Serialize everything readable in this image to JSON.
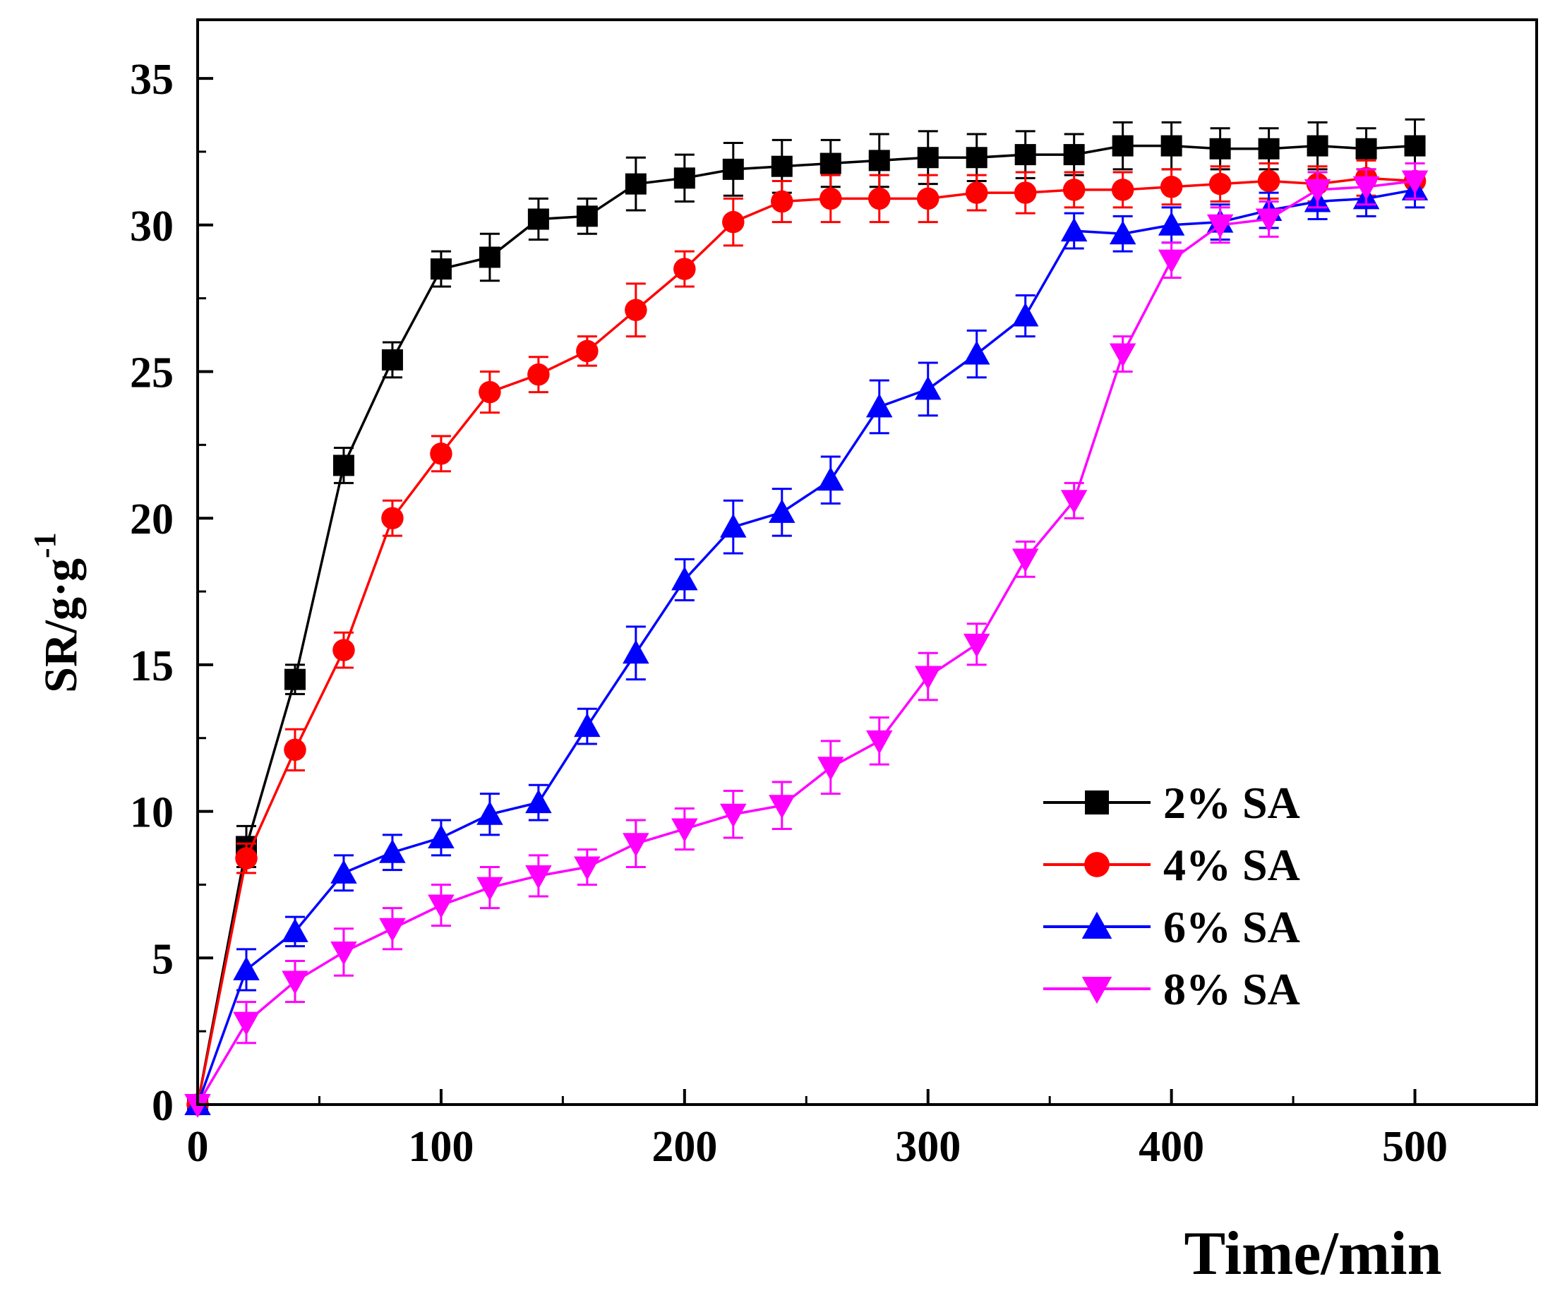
{
  "chart_data": {
    "type": "line",
    "title": "",
    "xlabel": "Time/min",
    "ylabel_main": "SR/g·g",
    "ylabel_sup": "-1",
    "xlim": [
      0,
      550
    ],
    "ylim": [
      0,
      37
    ],
    "xticks": [
      0,
      100,
      200,
      300,
      400,
      500
    ],
    "yticks": [
      0,
      5,
      10,
      15,
      20,
      25,
      30,
      35
    ],
    "xtick_labels": [
      "0",
      "100",
      "200",
      "300",
      "400",
      "500"
    ],
    "ytick_labels": [
      "0",
      "5",
      "10",
      "15",
      "20",
      "25",
      "30",
      "35"
    ],
    "grid": false,
    "legend_position": "bottom-right",
    "x": [
      0,
      20,
      40,
      60,
      80,
      100,
      120,
      140,
      160,
      180,
      200,
      220,
      240,
      260,
      280,
      300,
      320,
      340,
      360,
      380,
      400,
      420,
      440,
      460,
      480,
      500
    ],
    "series": [
      {
        "name": "2% SA",
        "color": "#000000",
        "marker": "square",
        "values": [
          0,
          8.8,
          14.5,
          21.8,
          25.4,
          28.5,
          28.9,
          30.2,
          30.3,
          31.4,
          31.6,
          31.9,
          32.0,
          32.1,
          32.2,
          32.3,
          32.3,
          32.4,
          32.4,
          32.7,
          32.7,
          32.6,
          32.6,
          32.7,
          32.6,
          32.7
        ],
        "errors": [
          0,
          0.7,
          0.5,
          0.6,
          0.6,
          0.6,
          0.8,
          0.7,
          0.6,
          0.9,
          0.8,
          0.9,
          0.9,
          0.8,
          0.9,
          0.9,
          0.8,
          0.8,
          0.7,
          0.8,
          0.8,
          0.7,
          0.7,
          0.8,
          0.7,
          0.9
        ]
      },
      {
        "name": "4% SA",
        "color": "#ff0000",
        "marker": "circle",
        "values": [
          0,
          8.4,
          12.1,
          15.5,
          20.0,
          22.2,
          24.3,
          24.9,
          25.7,
          27.1,
          28.5,
          30.1,
          30.8,
          30.9,
          30.9,
          30.9,
          31.1,
          31.1,
          31.2,
          31.2,
          31.3,
          31.4,
          31.5,
          31.4,
          31.6,
          31.5
        ],
        "errors": [
          0,
          0.5,
          0.7,
          0.6,
          0.6,
          0.6,
          0.7,
          0.6,
          0.5,
          0.9,
          0.6,
          0.8,
          0.7,
          0.8,
          0.8,
          0.8,
          0.6,
          0.7,
          0.6,
          0.6,
          0.6,
          0.6,
          0.6,
          0.6,
          0.6,
          0.6
        ]
      },
      {
        "name": "6% SA",
        "color": "#0000ff",
        "marker": "triangle-up",
        "values": [
          0,
          4.6,
          5.9,
          7.9,
          8.6,
          9.1,
          9.9,
          10.3,
          12.9,
          15.4,
          17.9,
          19.7,
          20.2,
          21.3,
          23.8,
          24.4,
          25.6,
          26.9,
          29.8,
          29.7,
          30.0,
          30.1,
          30.5,
          30.8,
          30.9,
          31.2
        ],
        "errors": [
          0,
          0.7,
          0.5,
          0.6,
          0.6,
          0.6,
          0.7,
          0.6,
          0.6,
          0.9,
          0.7,
          0.9,
          0.8,
          0.8,
          0.9,
          0.9,
          0.8,
          0.7,
          0.6,
          0.6,
          0.6,
          0.6,
          0.6,
          0.6,
          0.6,
          0.6
        ]
      },
      {
        "name": "8% SA",
        "color": "#ff00ff",
        "marker": "triangle-down",
        "values": [
          0,
          2.8,
          4.2,
          5.2,
          6.0,
          6.8,
          7.4,
          7.8,
          8.1,
          8.9,
          9.4,
          9.9,
          10.2,
          11.5,
          12.4,
          14.6,
          15.7,
          18.6,
          20.6,
          25.6,
          28.8,
          30.0,
          30.2,
          31.2,
          31.3,
          31.5
        ],
        "errors": [
          0,
          0.7,
          0.7,
          0.8,
          0.7,
          0.7,
          0.7,
          0.7,
          0.6,
          0.8,
          0.7,
          0.8,
          0.8,
          0.9,
          0.8,
          0.8,
          0.7,
          0.6,
          0.6,
          0.6,
          0.6,
          0.6,
          0.6,
          0.6,
          0.6,
          0.6
        ]
      }
    ]
  }
}
